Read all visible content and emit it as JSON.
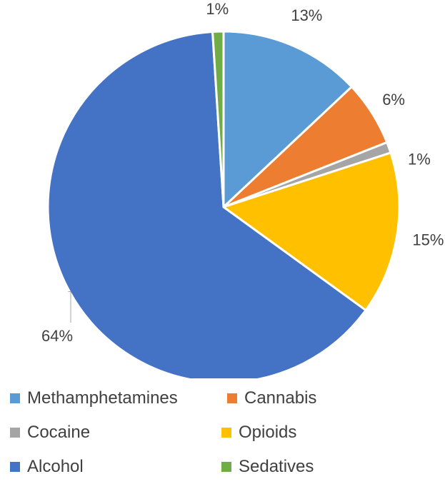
{
  "chart_data": {
    "type": "pie",
    "title": "",
    "slices": [
      {
        "name": "Methamphetamines",
        "value": 13,
        "label": "13%",
        "color": "#5B9BD5"
      },
      {
        "name": "Cannabis",
        "value": 6,
        "label": "6%",
        "color": "#ED7D31"
      },
      {
        "name": "Cocaine",
        "value": 1,
        "label": "1%",
        "color": "#A5A5A5"
      },
      {
        "name": "Opioids",
        "value": 15,
        "label": "15%",
        "color": "#FFC000"
      },
      {
        "name": "Alcohol",
        "value": 64,
        "label": "64%",
        "color": "#4472C4"
      },
      {
        "name": "Sedatives",
        "value": 1,
        "label": "1%",
        "color": "#70AD47"
      }
    ],
    "start_angle_deg": 0,
    "direction": "clockwise",
    "legend_position": "bottom"
  }
}
